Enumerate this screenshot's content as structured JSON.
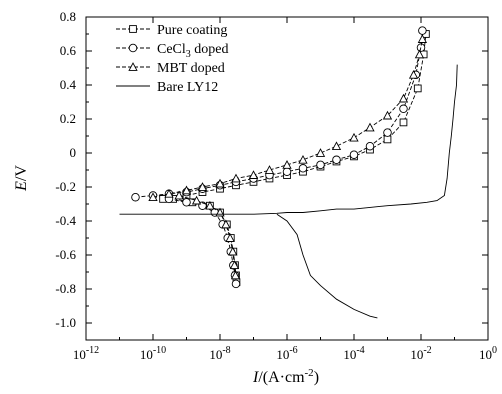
{
  "chart_data": {
    "type": "line",
    "title": "",
    "xlabel": "I/(A·cm⁻²)",
    "xlabel_parts": {
      "var": "I",
      "unit_open": "/(A·cm",
      "unit_exp": "-2",
      "unit_close": ")"
    },
    "ylabel": "E/V",
    "ylabel_parts": {
      "var": "E",
      "unit": "/V"
    },
    "x_scale": "log",
    "xlim": [
      1e-12,
      1
    ],
    "ylim": [
      -1.1,
      0.8
    ],
    "x_ticks": [
      {
        "value": 1e-12,
        "base": "10",
        "exp": "-12"
      },
      {
        "value": 1e-10,
        "base": "10",
        "exp": "-10"
      },
      {
        "value": 1e-08,
        "base": "10",
        "exp": "-8"
      },
      {
        "value": 1e-06,
        "base": "10",
        "exp": "-6"
      },
      {
        "value": 0.0001,
        "base": "10",
        "exp": "-4"
      },
      {
        "value": 0.01,
        "base": "10",
        "exp": "-2"
      },
      {
        "value": 1,
        "base": "10",
        "exp": "0"
      }
    ],
    "y_ticks": [
      "0.8",
      "0.6",
      "0.4",
      "0.2",
      "0",
      "-0.2",
      "-0.4",
      "-0.6",
      "-0.8",
      "-1.0"
    ],
    "grid": false,
    "legend_position": "top-left",
    "series": [
      {
        "name": "Pure coating",
        "name_parts": {
          "main": "Pure coating",
          "sub": "",
          "tail": ""
        },
        "marker": "square",
        "line": "dashed",
        "anodic": {
          "x": [
            2e-10,
            1e-09,
            3e-09,
            1e-08,
            3e-08,
            1e-07,
            3e-07,
            1e-06,
            3e-06,
            1e-05,
            3e-05,
            0.0001,
            0.0003,
            0.001,
            0.003,
            0.008,
            0.012,
            0.014
          ],
          "y": [
            -0.27,
            -0.25,
            -0.23,
            -0.21,
            -0.19,
            -0.17,
            -0.15,
            -0.13,
            -0.11,
            -0.08,
            -0.05,
            -0.02,
            0.02,
            0.08,
            0.18,
            0.38,
            0.58,
            0.7
          ]
        },
        "cathodic": {
          "x": [
            4e-10,
            1.5e-09,
            5e-09,
            1e-08,
            1.6e-08,
            2.1e-08,
            2.5e-08,
            2.8e-08,
            3e-08,
            3.1e-08
          ],
          "y": [
            -0.27,
            -0.29,
            -0.31,
            -0.35,
            -0.42,
            -0.5,
            -0.58,
            -0.66,
            -0.72,
            -0.76
          ]
        }
      },
      {
        "name": "CeCl3 doped",
        "name_parts": {
          "main": "CeCl",
          "sub": "3",
          "tail": " doped"
        },
        "marker": "circle",
        "line": "dashed",
        "anodic": {
          "x": [
            3e-11,
            1e-10,
            3e-10,
            1e-09,
            3e-09,
            1e-08,
            3e-08,
            1e-07,
            3e-07,
            1e-06,
            3e-06,
            1e-05,
            3e-05,
            0.0001,
            0.0003,
            0.001,
            0.003,
            0.007,
            0.01,
            0.011
          ],
          "y": [
            -0.26,
            -0.25,
            -0.24,
            -0.23,
            -0.21,
            -0.19,
            -0.17,
            -0.15,
            -0.13,
            -0.11,
            -0.09,
            -0.07,
            -0.04,
            -0.01,
            0.04,
            0.12,
            0.26,
            0.46,
            0.62,
            0.72
          ]
        },
        "cathodic": {
          "x": [
            3e-10,
            1e-09,
            3e-09,
            7e-09,
            1.2e-08,
            1.7e-08,
            2.1e-08,
            2.5e-08,
            2.8e-08,
            3e-08
          ],
          "y": [
            -0.27,
            -0.29,
            -0.31,
            -0.35,
            -0.42,
            -0.5,
            -0.58,
            -0.66,
            -0.72,
            -0.77
          ]
        }
      },
      {
        "name": "MBT doped",
        "name_parts": {
          "main": "MBT doped",
          "sub": "",
          "tail": ""
        },
        "marker": "triangle",
        "line": "dashed",
        "anodic": {
          "x": [
            1e-10,
            3e-10,
            1e-09,
            3e-09,
            1e-08,
            3e-08,
            1e-07,
            3e-07,
            1e-06,
            3e-06,
            1e-05,
            3e-05,
            0.0001,
            0.0003,
            0.001,
            0.003,
            0.006,
            0.009,
            0.011
          ],
          "y": [
            -0.26,
            -0.24,
            -0.22,
            -0.2,
            -0.18,
            -0.15,
            -0.13,
            -0.1,
            -0.07,
            -0.04,
            0.0,
            0.04,
            0.09,
            0.15,
            0.22,
            0.32,
            0.46,
            0.58,
            0.67
          ]
        },
        "cathodic": {
          "x": [
            6e-10,
            2e-09,
            5e-09,
            1e-08,
            1.5e-08,
            2e-08,
            2.4e-08,
            2.7e-08,
            2.9e-08
          ],
          "y": [
            -0.25,
            -0.28,
            -0.31,
            -0.35,
            -0.42,
            -0.5,
            -0.58,
            -0.66,
            -0.72
          ]
        }
      },
      {
        "name": "Bare LY12",
        "name_parts": {
          "main": "Bare LY12",
          "sub": "",
          "tail": ""
        },
        "marker": "none",
        "line": "solid",
        "x": [
          1e-11,
          1e-09,
          1e-08,
          1e-07,
          5e-07,
          1e-06,
          3e-06,
          1e-05,
          3e-05,
          0.0001,
          0.0003,
          0.001,
          0.005,
          0.015,
          0.03,
          0.05,
          0.06,
          0.07,
          0.08,
          0.09,
          0.1,
          0.115,
          0.12
        ],
        "y": [
          -0.36,
          -0.36,
          -0.36,
          -0.36,
          -0.355,
          -0.35,
          -0.35,
          -0.34,
          -0.33,
          -0.33,
          -0.32,
          -0.31,
          -0.3,
          -0.29,
          -0.28,
          -0.25,
          -0.15,
          0.0,
          0.1,
          0.2,
          0.3,
          0.4,
          0.52
        ],
        "cathodic_x": [
          5e-07,
          1e-06,
          2e-06,
          3e-06,
          5e-06,
          1e-05,
          3e-05,
          0.0001,
          0.0003,
          0.0005
        ],
        "cathodic_y": [
          -0.36,
          -0.4,
          -0.48,
          -0.6,
          -0.72,
          -0.78,
          -0.86,
          -0.92,
          -0.96,
          -0.97
        ]
      }
    ]
  }
}
